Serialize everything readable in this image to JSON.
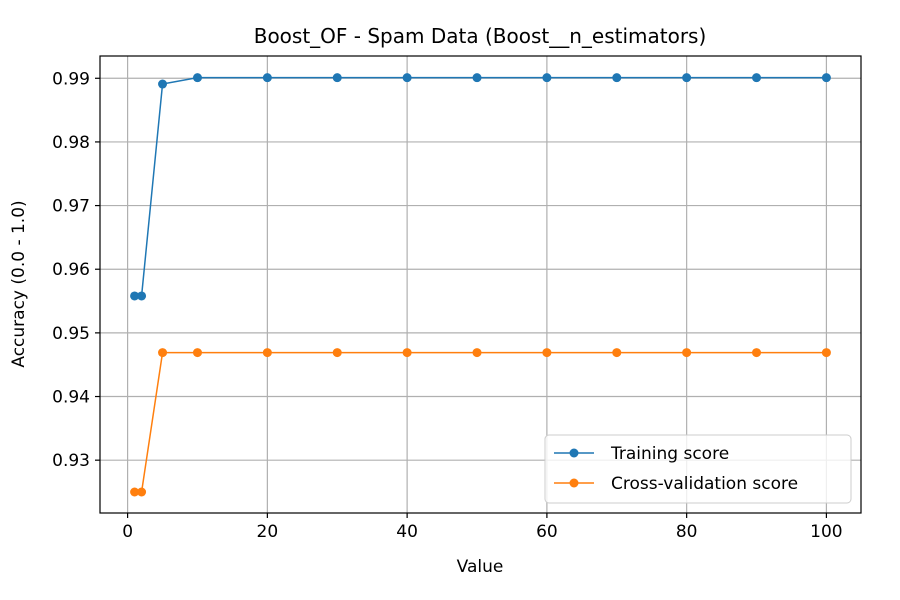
{
  "chart_data": {
    "type": "line",
    "title": "Boost_OF - Spam Data (Boost__n_estimators)",
    "xlabel": "Value",
    "ylabel": "Accuracy (0.0 - 1.0)",
    "xlim": [
      -3.95,
      104.95
    ],
    "ylim": [
      0.9217,
      0.9935
    ],
    "xticks": [
      0,
      20,
      40,
      60,
      80,
      100
    ],
    "yticks": [
      0.93,
      0.94,
      0.95,
      0.96,
      0.97,
      0.98,
      0.99
    ],
    "grid": true,
    "legend_position": "lower-right",
    "x": [
      1,
      2,
      5,
      10,
      20,
      30,
      40,
      50,
      60,
      70,
      80,
      90,
      100
    ],
    "series": [
      {
        "name": "Training score",
        "color": "#1f77b4",
        "values": [
          0.9558,
          0.9558,
          0.9891,
          0.9901,
          0.9901,
          0.9901,
          0.9901,
          0.9901,
          0.9901,
          0.9901,
          0.9901,
          0.9901,
          0.9901
        ]
      },
      {
        "name": "Cross-validation score",
        "color": "#ff7f0e",
        "values": [
          0.925,
          0.925,
          0.9469,
          0.9469,
          0.9469,
          0.9469,
          0.9469,
          0.9469,
          0.9469,
          0.9469,
          0.9469,
          0.9469,
          0.9469
        ]
      }
    ]
  }
}
